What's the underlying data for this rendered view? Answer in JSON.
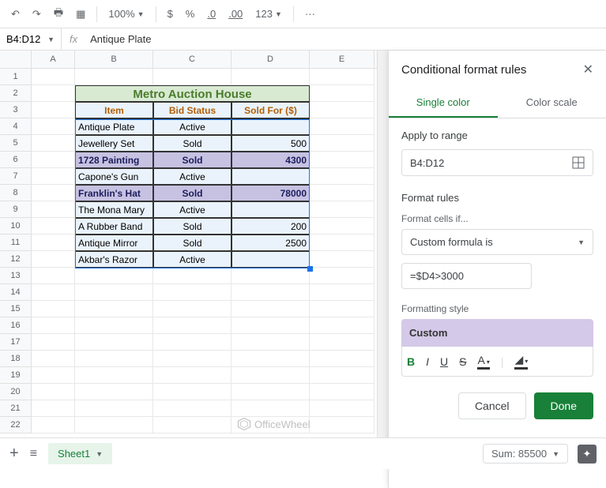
{
  "toolbar": {
    "zoom": "100%",
    "currency": "$",
    "percent": "%",
    "dec_dec": ".0",
    "dec_inc": ".00",
    "format": "123",
    "more": "···"
  },
  "formula_bar": {
    "range": "B4:D12",
    "fx": "fx",
    "value": "Antique Plate"
  },
  "columns": [
    "A",
    "B",
    "C",
    "D",
    "E"
  ],
  "sheet": {
    "title": "Metro Auction House",
    "headers": {
      "item": "Item",
      "status": "Bid Status",
      "sold": "Sold For ($)"
    },
    "rows": [
      {
        "item": "Antique Plate",
        "status": "Active",
        "sold": "",
        "hl": false
      },
      {
        "item": "Jewellery Set",
        "status": "Sold",
        "sold": "500",
        "hl": false
      },
      {
        "item": "1728 Painting",
        "status": "Sold",
        "sold": "4300",
        "hl": true
      },
      {
        "item": "Capone's Gun",
        "status": "Active",
        "sold": "",
        "hl": false
      },
      {
        "item": "Franklin's Hat",
        "status": "Sold",
        "sold": "78000",
        "hl": true
      },
      {
        "item": "The Mona Mary",
        "status": "Active",
        "sold": "",
        "hl": false
      },
      {
        "item": "A Rubber Band",
        "status": "Sold",
        "sold": "200",
        "hl": false
      },
      {
        "item": "Antique Mirror",
        "status": "Sold",
        "sold": "2500",
        "hl": false
      },
      {
        "item": "Akbar's Razor",
        "status": "Active",
        "sold": "",
        "hl": false
      }
    ]
  },
  "sidepanel": {
    "title": "Conditional format rules",
    "tab_single": "Single color",
    "tab_scale": "Color scale",
    "apply_label": "Apply to range",
    "range_value": "B4:D12",
    "rules_label": "Format rules",
    "cells_if_label": "Format cells if...",
    "condition": "Custom formula is",
    "formula": "=$D4>3000",
    "style_label": "Formatting style",
    "style_name": "Custom",
    "cancel": "Cancel",
    "done": "Done"
  },
  "footer": {
    "sheet_name": "Sheet1",
    "sum": "Sum: 85500"
  },
  "watermark": "OfficeWheel"
}
